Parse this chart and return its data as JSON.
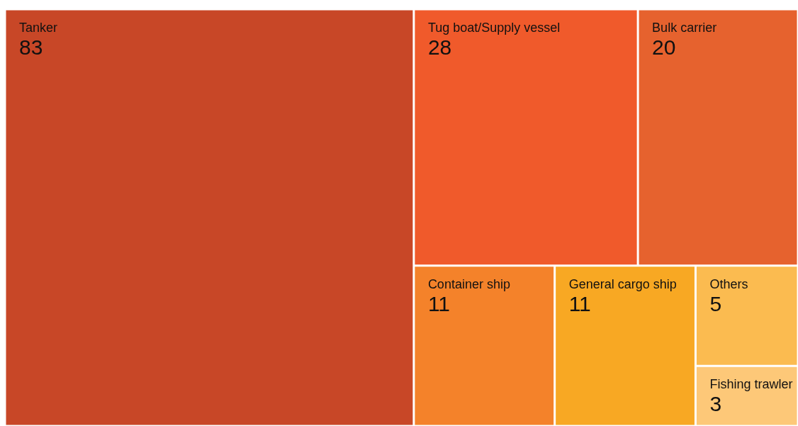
{
  "chart_data": {
    "type": "other",
    "categories": [
      "Tanker",
      "Tug boat/Supply vessel",
      "Bulk carrier",
      "Container ship",
      "General cargo ship",
      "Others",
      "Fishing trawler"
    ],
    "values": [
      83,
      28,
      20,
      11,
      11,
      5,
      3
    ],
    "colors": [
      "#c84727",
      "#f05a2b",
      "#e6622e",
      "#f4822a",
      "#f8a823",
      "#fbbb50",
      "#fdc878"
    ],
    "data_labels": true
  }
}
